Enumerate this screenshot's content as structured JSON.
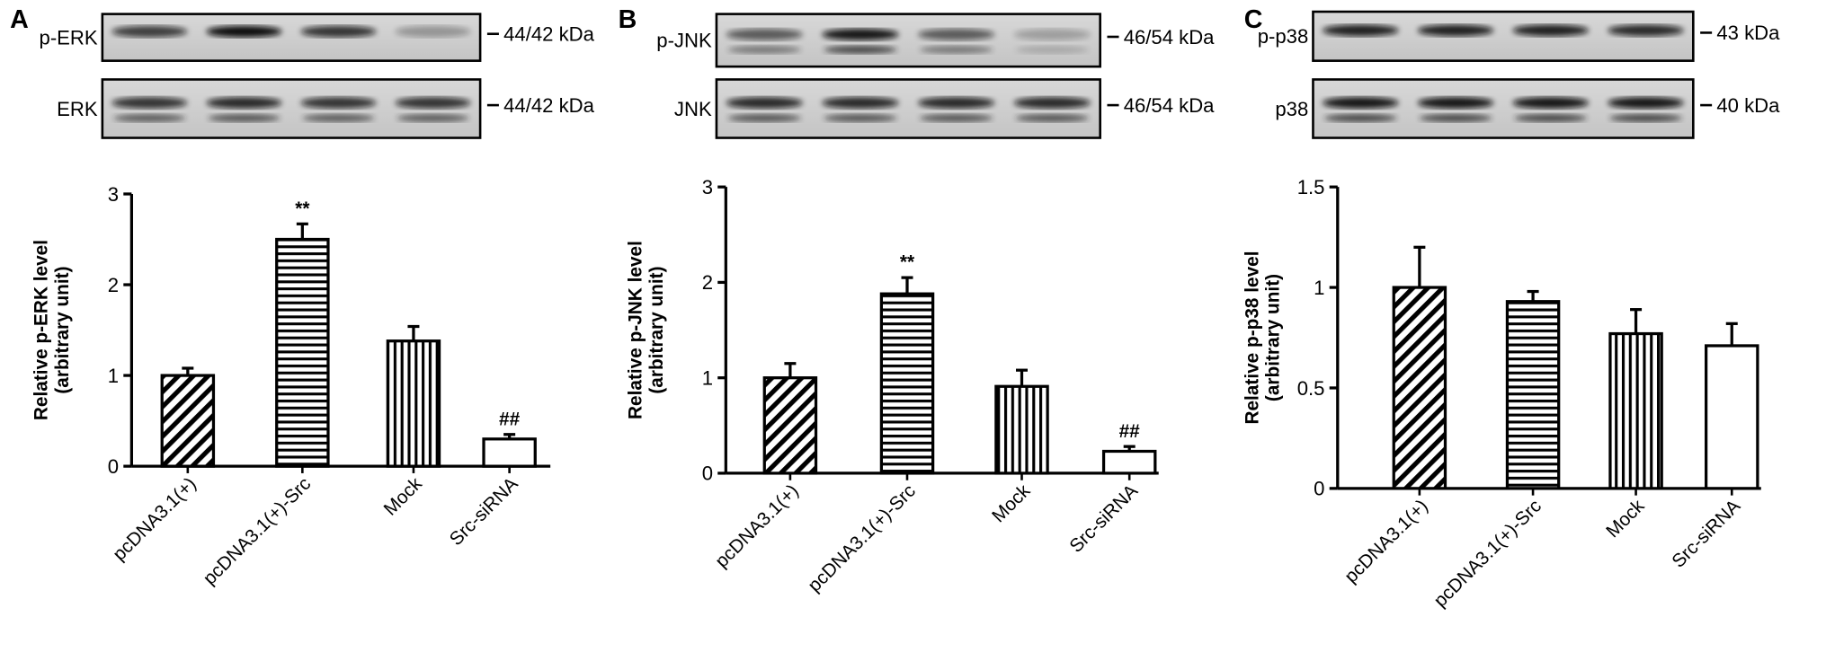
{
  "chart_data": [
    {
      "panel": "A",
      "type": "bar",
      "blots": [
        {
          "label": "p-ERK",
          "size": "44/42 kDa"
        },
        {
          "label": "ERK",
          "size": "44/42 kDa"
        }
      ],
      "ylabel": [
        "Relative p-ERK level",
        "(arbitrary unit)"
      ],
      "categories": [
        "pcDNA3.1(+)",
        "pcDNA3.1(+)-Src",
        "Mock",
        "Src-siRNA"
      ],
      "values": [
        1.0,
        2.5,
        1.38,
        0.3
      ],
      "errors": [
        0.08,
        0.17,
        0.16,
        0.05
      ],
      "annotations": [
        null,
        "**",
        null,
        "##"
      ],
      "patterns": [
        "diagonal",
        "horizontal",
        "vertical",
        "none"
      ],
      "ylim": [
        0,
        3
      ],
      "yticks": [
        0,
        1,
        2,
        3
      ]
    },
    {
      "panel": "B",
      "type": "bar",
      "blots": [
        {
          "label": "p-JNK",
          "size": "46/54 kDa"
        },
        {
          "label": "JNK",
          "size": "46/54 kDa"
        }
      ],
      "ylabel": [
        "Relative p-JNK level",
        "(arbitrary unit)"
      ],
      "categories": [
        "pcDNA3.1(+)",
        "pcDNA3.1(+)-Src",
        "Mock",
        "Src-siRNA"
      ],
      "values": [
        1.0,
        1.88,
        0.91,
        0.23
      ],
      "errors": [
        0.15,
        0.17,
        0.17,
        0.05
      ],
      "annotations": [
        null,
        "**",
        null,
        "##"
      ],
      "patterns": [
        "diagonal",
        "horizontal",
        "vertical",
        "none"
      ],
      "ylim": [
        0,
        3
      ],
      "yticks": [
        0,
        1,
        2,
        3
      ]
    },
    {
      "panel": "C",
      "type": "bar",
      "blots": [
        {
          "label": "p-p38",
          "size": "43 kDa"
        },
        {
          "label": "p38",
          "size": "40 kDa"
        }
      ],
      "ylabel": [
        "Relative p-p38 level",
        "(arbitrary unit)"
      ],
      "categories": [
        "pcDNA3.1(+)",
        "pcDNA3.1(+)-Src",
        "Mock",
        "Src-siRNA"
      ],
      "values": [
        1.0,
        0.93,
        0.77,
        0.71
      ],
      "errors": [
        0.2,
        0.05,
        0.12,
        0.11
      ],
      "annotations": [
        null,
        null,
        null,
        null
      ],
      "patterns": [
        "diagonal",
        "horizontal",
        "vertical",
        "none"
      ],
      "ylim": [
        0,
        1.5
      ],
      "yticks": [
        0,
        0.5,
        1,
        1.5
      ]
    }
  ]
}
